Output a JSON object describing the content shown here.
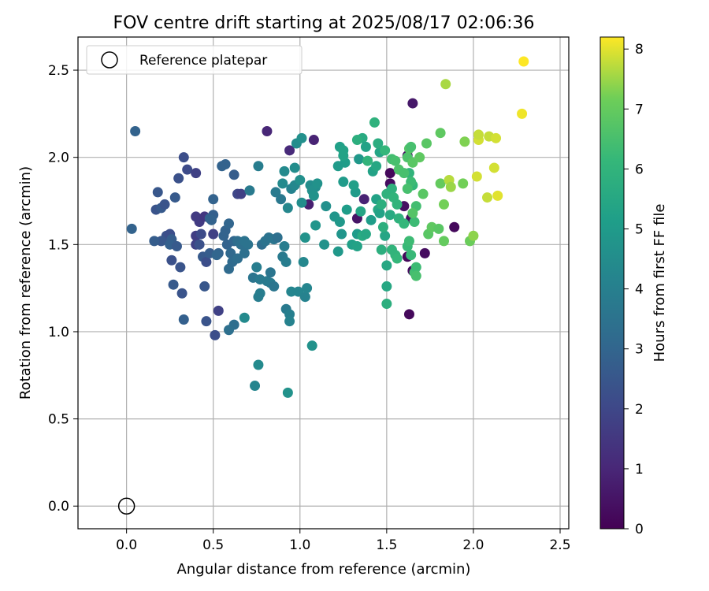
{
  "chart_data": {
    "type": "scatter",
    "title": "FOV centre drift starting at 2025/08/17 02:06:36",
    "xlabel": "Angular distance from reference (arcmin)",
    "ylabel": "Rotation from reference (arcmin)",
    "xlim": [
      -0.28,
      2.55
    ],
    "ylim": [
      -0.13,
      2.69
    ],
    "xticks": [
      0.0,
      0.5,
      1.0,
      1.5,
      2.0,
      2.5
    ],
    "xtick_labels": [
      "0.0",
      "0.5",
      "1.0",
      "1.5",
      "2.0",
      "2.5"
    ],
    "yticks": [
      0.0,
      0.5,
      1.0,
      1.5,
      2.0,
      2.5
    ],
    "ytick_labels": [
      "0.0",
      "0.5",
      "1.0",
      "1.5",
      "2.0",
      "2.5"
    ],
    "grid": true,
    "legend": {
      "placement": "upper-left",
      "entries": [
        "Reference platepar"
      ]
    },
    "reference_point": {
      "x": 0.0,
      "y": 0.0,
      "marker": "open-circle",
      "color": "#000000"
    },
    "colorbar": {
      "label": "Hours from first FF file",
      "range": [
        0,
        8.2
      ],
      "ticks": [
        0,
        1,
        2,
        3,
        4,
        5,
        6,
        7,
        8
      ],
      "tick_labels": [
        "0",
        "1",
        "2",
        "3",
        "4",
        "5",
        "6",
        "7",
        "8"
      ],
      "colormap": "viridis"
    },
    "series": [
      {
        "points": [
          [
            1.63,
            1.1,
            0.2
          ],
          [
            1.89,
            1.6,
            0.2
          ],
          [
            1.72,
            1.45,
            0.3
          ],
          [
            1.65,
            1.35,
            0.3
          ],
          [
            1.62,
            1.43,
            0.2
          ],
          [
            1.52,
            1.85,
            0.3
          ],
          [
            1.6,
            1.72,
            0.4
          ],
          [
            1.64,
            1.65,
            0.3
          ],
          [
            1.52,
            1.91,
            0.2
          ],
          [
            1.65,
            2.31,
            0.6
          ],
          [
            1.62,
            2.01,
            0.4
          ],
          [
            1.33,
            1.65,
            0.5
          ],
          [
            1.37,
            1.76,
            0.9
          ],
          [
            1.05,
            1.73,
            0.8
          ],
          [
            1.08,
            2.1,
            0.9
          ],
          [
            0.81,
            2.15,
            1.0
          ],
          [
            0.94,
            2.04,
            1.1
          ],
          [
            0.05,
            2.15,
            2.9
          ],
          [
            0.03,
            1.59,
            2.9
          ],
          [
            0.18,
            1.8,
            2.5
          ],
          [
            0.17,
            1.7,
            2.4
          ],
          [
            0.2,
            1.71,
            2.6
          ],
          [
            0.22,
            1.73,
            2.4
          ],
          [
            0.28,
            1.77,
            2.6
          ],
          [
            0.3,
            1.88,
            2.3
          ],
          [
            0.33,
            2.0,
            2.2
          ],
          [
            0.35,
            1.93,
            2.1
          ],
          [
            0.4,
            1.91,
            1.8
          ],
          [
            0.23,
            1.55,
            2.3
          ],
          [
            0.2,
            1.52,
            2.5
          ],
          [
            0.25,
            1.56,
            2.2
          ],
          [
            0.26,
            1.53,
            2.7
          ],
          [
            0.25,
            1.5,
            2.8
          ],
          [
            0.29,
            1.49,
            2.6
          ],
          [
            0.16,
            1.52,
            2.7
          ],
          [
            0.26,
            1.41,
            2.3
          ],
          [
            0.31,
            1.37,
            2.4
          ],
          [
            0.27,
            1.27,
            2.6
          ],
          [
            0.32,
            1.22,
            2.4
          ],
          [
            0.4,
            1.55,
            1.7
          ],
          [
            0.4,
            1.66,
            1.6
          ],
          [
            0.42,
            1.63,
            1.6
          ],
          [
            0.45,
            1.66,
            1.5
          ],
          [
            0.4,
            1.5,
            1.8
          ],
          [
            0.43,
            1.56,
            2.1
          ],
          [
            0.42,
            1.5,
            2.3
          ],
          [
            0.44,
            1.43,
            2.6
          ],
          [
            0.46,
            1.4,
            2.2
          ],
          [
            0.48,
            1.45,
            2.7
          ],
          [
            0.48,
            1.65,
            2.9
          ],
          [
            0.5,
            1.67,
            2.8
          ],
          [
            0.5,
            1.76,
            2.9
          ],
          [
            0.5,
            1.56,
            1.8
          ],
          [
            0.49,
            1.64,
            2.9
          ],
          [
            0.45,
            1.26,
            2.5
          ],
          [
            0.33,
            1.07,
            2.8
          ],
          [
            0.46,
            1.06,
            2.4
          ],
          [
            0.51,
            0.98,
            2.2
          ],
          [
            0.53,
            1.12,
            1.8
          ],
          [
            0.55,
            1.95,
            2.9
          ],
          [
            0.57,
            1.96,
            2.9
          ],
          [
            0.62,
            1.9,
            2.7
          ],
          [
            0.64,
            1.79,
            2.0
          ],
          [
            0.66,
            1.79,
            1.8
          ],
          [
            0.56,
            1.55,
            2.9
          ],
          [
            0.57,
            1.58,
            2.9
          ],
          [
            0.59,
            1.62,
            3.0
          ],
          [
            0.58,
            1.5,
            2.9
          ],
          [
            0.6,
            1.45,
            3.1
          ],
          [
            0.59,
            1.36,
            3.2
          ],
          [
            0.61,
            1.4,
            3.2
          ],
          [
            0.62,
            1.52,
            3.0
          ],
          [
            0.64,
            1.42,
            3.3
          ],
          [
            0.64,
            1.52,
            3.3
          ],
          [
            0.66,
            1.5,
            3.4
          ],
          [
            0.68,
            1.52,
            3.5
          ],
          [
            0.7,
            1.5,
            3.5
          ],
          [
            0.68,
            1.45,
            3.4
          ],
          [
            0.62,
            1.04,
            3.3
          ],
          [
            0.59,
            1.01,
            3.4
          ],
          [
            0.53,
            1.45,
            2.9
          ],
          [
            0.52,
            1.44,
            3.0
          ],
          [
            0.71,
            1.81,
            3.8
          ],
          [
            0.76,
            1.95,
            3.9
          ],
          [
            0.73,
            1.31,
            3.6
          ],
          [
            0.77,
            1.3,
            3.8
          ],
          [
            0.75,
            1.37,
            3.9
          ],
          [
            0.77,
            1.22,
            3.9
          ],
          [
            0.76,
            1.2,
            3.9
          ],
          [
            0.78,
            1.5,
            3.3
          ],
          [
            0.8,
            1.52,
            3.5
          ],
          [
            0.82,
            1.54,
            3.5
          ],
          [
            0.85,
            1.53,
            3.6
          ],
          [
            0.87,
            1.54,
            3.4
          ],
          [
            0.86,
            1.8,
            3.8
          ],
          [
            0.89,
            1.76,
            3.7
          ],
          [
            0.91,
            1.49,
            3.9
          ],
          [
            0.9,
            1.43,
            3.8
          ],
          [
            0.92,
            1.4,
            3.9
          ],
          [
            0.81,
            1.29,
            3.8
          ],
          [
            0.83,
            1.34,
            3.6
          ],
          [
            0.83,
            1.28,
            3.8
          ],
          [
            0.85,
            1.26,
            3.6
          ],
          [
            0.68,
            1.08,
            4.4
          ],
          [
            0.76,
            0.81,
            4.4
          ],
          [
            0.74,
            0.69,
            4.2
          ],
          [
            0.92,
            1.13,
            3.8
          ],
          [
            0.94,
            1.1,
            4.0
          ],
          [
            0.94,
            1.06,
            4.1
          ],
          [
            0.95,
            1.23,
            4.2
          ],
          [
            0.99,
            1.23,
            4.2
          ],
          [
            1.03,
            1.2,
            4.1
          ],
          [
            1.04,
            1.25,
            4.2
          ],
          [
            1.02,
            1.4,
            4.3
          ],
          [
            0.93,
            1.71,
            4.3
          ],
          [
            0.95,
            1.82,
            4.1
          ],
          [
            0.97,
            1.84,
            4.3
          ],
          [
            0.9,
            1.85,
            4.4
          ],
          [
            0.91,
            1.92,
            4.4
          ],
          [
            0.97,
            1.94,
            4.5
          ],
          [
            1.0,
            1.87,
            4.6
          ],
          [
            0.98,
            2.08,
            4.5
          ],
          [
            1.01,
            2.11,
            4.6
          ],
          [
            1.01,
            1.74,
            4.5
          ],
          [
            1.03,
            1.54,
            4.7
          ],
          [
            0.93,
            0.65,
            4.7
          ],
          [
            1.07,
            0.92,
            4.7
          ],
          [
            1.06,
            1.84,
            4.5
          ],
          [
            1.09,
            1.83,
            4.5
          ],
          [
            1.07,
            1.81,
            4.6
          ],
          [
            1.08,
            1.78,
            4.7
          ],
          [
            1.1,
            1.85,
            4.7
          ],
          [
            1.09,
            1.61,
            4.8
          ],
          [
            1.15,
            1.72,
            4.6
          ],
          [
            1.14,
            1.5,
            4.7
          ],
          [
            1.2,
            1.66,
            4.8
          ],
          [
            1.23,
            1.63,
            4.9
          ],
          [
            1.24,
            1.56,
            4.8
          ],
          [
            1.22,
            1.46,
            4.9
          ],
          [
            1.25,
            1.86,
            5.0
          ],
          [
            1.27,
            1.7,
            5.1
          ],
          [
            1.26,
            1.97,
            5.1
          ],
          [
            1.22,
            1.95,
            5.0
          ],
          [
            1.23,
            2.06,
            5.2
          ],
          [
            1.25,
            2.04,
            5.3
          ],
          [
            1.25,
            2.01,
            5.3
          ],
          [
            1.3,
            1.5,
            5.2
          ],
          [
            1.32,
            1.8,
            5.0
          ],
          [
            1.31,
            1.84,
            5.2
          ],
          [
            1.33,
            1.56,
            5.0
          ],
          [
            1.35,
            1.69,
            5.4
          ],
          [
            1.36,
            1.55,
            5.6
          ],
          [
            1.34,
            1.99,
            4.9
          ],
          [
            1.36,
            2.11,
            5.6
          ],
          [
            1.33,
            2.1,
            5.8
          ],
          [
            1.39,
            1.98,
            6.0
          ],
          [
            1.38,
            2.06,
            5.3
          ],
          [
            1.33,
            1.49,
            5.3
          ],
          [
            1.38,
            1.56,
            5.5
          ],
          [
            1.41,
            1.64,
            5.1
          ],
          [
            1.42,
            1.92,
            5.3
          ],
          [
            1.44,
            1.95,
            5.5
          ],
          [
            1.44,
            1.76,
            5.3
          ],
          [
            1.45,
            1.7,
            5.5
          ],
          [
            1.46,
            1.68,
            5.3
          ],
          [
            1.46,
            2.03,
            5.4
          ],
          [
            1.47,
            1.47,
            5.8
          ],
          [
            1.5,
            1.38,
            5.5
          ],
          [
            1.49,
            1.55,
            5.4
          ],
          [
            1.5,
            1.26,
            5.5
          ],
          [
            1.5,
            1.16,
            5.8
          ],
          [
            1.43,
            2.2,
            5.9
          ],
          [
            1.45,
            2.08,
            5.7
          ],
          [
            1.49,
            2.04,
            6.1
          ],
          [
            1.47,
            1.73,
            5.8
          ],
          [
            1.5,
            1.79,
            5.9
          ],
          [
            1.48,
            1.6,
            5.8
          ],
          [
            1.52,
            1.67,
            5.6
          ],
          [
            1.53,
            1.47,
            6.0
          ],
          [
            1.55,
            1.44,
            6.0
          ],
          [
            1.56,
            1.42,
            6.1
          ],
          [
            1.57,
            1.65,
            5.9
          ],
          [
            1.53,
            1.82,
            5.9
          ],
          [
            1.54,
            1.77,
            6.0
          ],
          [
            1.56,
            1.73,
            6.0
          ],
          [
            1.6,
            1.62,
            6.1
          ],
          [
            1.62,
            1.49,
            6.2
          ],
          [
            1.63,
            1.52,
            6.3
          ],
          [
            1.64,
            1.44,
            6.2
          ],
          [
            1.66,
            1.63,
            6.3
          ],
          [
            1.67,
            1.72,
            6.4
          ],
          [
            1.66,
            1.34,
            6.4
          ],
          [
            1.67,
            1.37,
            6.3
          ],
          [
            1.67,
            1.32,
            6.5
          ],
          [
            1.63,
            1.91,
            6.0
          ],
          [
            1.65,
            1.84,
            6.1
          ],
          [
            1.64,
            1.86,
            6.3
          ],
          [
            1.62,
            1.82,
            6.5
          ],
          [
            1.53,
            1.99,
            6.4
          ],
          [
            1.55,
            1.98,
            6.5
          ],
          [
            1.57,
            1.93,
            6.6
          ],
          [
            1.6,
            1.91,
            6.5
          ],
          [
            1.62,
            2.0,
            6.6
          ],
          [
            1.63,
            2.05,
            6.7
          ],
          [
            1.65,
            1.97,
            6.8
          ],
          [
            1.69,
            2.0,
            6.9
          ],
          [
            1.64,
            2.06,
            6.5
          ],
          [
            1.65,
            1.68,
            6.7
          ],
          [
            1.71,
            1.79,
            6.8
          ],
          [
            1.74,
            1.56,
            6.8
          ],
          [
            1.76,
            1.6,
            6.9
          ],
          [
            1.8,
            1.59,
            6.8
          ],
          [
            1.83,
            1.52,
            7.0
          ],
          [
            1.73,
            2.08,
            6.8
          ],
          [
            1.81,
            2.14,
            6.9
          ],
          [
            1.81,
            1.85,
            7.0
          ],
          [
            1.83,
            1.73,
            7.2
          ],
          [
            1.94,
            1.85,
            7.2
          ],
          [
            1.95,
            2.09,
            7.3
          ],
          [
            1.98,
            1.52,
            7.1
          ],
          [
            2.0,
            1.55,
            7.4
          ],
          [
            1.84,
            2.42,
            7.6
          ],
          [
            1.86,
            1.87,
            7.7
          ],
          [
            1.87,
            1.83,
            7.5
          ],
          [
            2.03,
            2.1,
            7.9
          ],
          [
            2.03,
            2.13,
            7.8
          ],
          [
            2.02,
            1.89,
            7.9
          ],
          [
            2.08,
            1.77,
            7.8
          ],
          [
            2.09,
            2.12,
            7.8
          ],
          [
            2.12,
            1.94,
            7.9
          ],
          [
            2.13,
            2.11,
            7.9
          ],
          [
            2.14,
            1.78,
            8.0
          ],
          [
            2.28,
            2.25,
            8.1
          ],
          [
            2.29,
            2.55,
            8.2
          ]
        ]
      }
    ]
  }
}
